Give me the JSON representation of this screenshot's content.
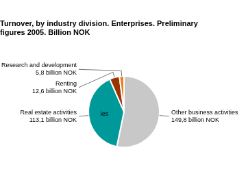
{
  "chart_data": {
    "type": "pie",
    "title": "Turnover, by industry division. Enterprises. Preliminary\nfigures 2005. Billion NOK",
    "categories": [
      "Other business activities\n149,8 billion NOK",
      "Real estate activities\n113,1 billion NOK",
      "Renting\n12,6 billion NOK",
      "Research and development\n5,8 billion NOK"
    ],
    "values": [
      149.8,
      113.1,
      12.6,
      5.8
    ],
    "colors": [
      "#c8c8c8",
      "#009999",
      "#993300",
      "#e88020"
    ],
    "annotations": [
      {
        "text": "ies"
      }
    ]
  }
}
